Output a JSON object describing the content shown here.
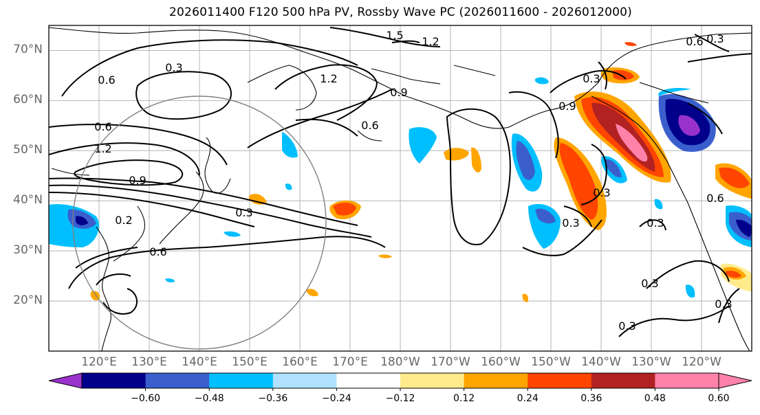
{
  "title": "2026011400 F120 500 hPa PV, Rossby Wave PC (2026011600 - 2026012000)",
  "map": {
    "lat_labels": [
      "70°N",
      "60°N",
      "50°N",
      "40°N",
      "30°N",
      "20°N"
    ],
    "lon_labels": [
      "120°E",
      "130°E",
      "140°E",
      "150°E",
      "160°E",
      "170°E",
      "180°W",
      "170°W",
      "160°W",
      "150°W",
      "140°W",
      "130°W",
      "120°W"
    ],
    "extent": {
      "lon_min": 110,
      "lon_max": 250,
      "lat_min": 10,
      "lat_max": 75
    },
    "contour_labels": [
      "1.5",
      "1.2",
      "0.6",
      "0.3",
      "1.2",
      "0.9",
      "0.6",
      "0.6",
      "1.2",
      "0.9",
      "0.3",
      "0.2",
      "0.6",
      "0.3",
      "0.9",
      "0.3",
      "0.3",
      "0.6",
      "0.3",
      "0.3",
      "0.3",
      "0.3",
      "0.3",
      "0.6"
    ]
  },
  "colorbar": {
    "tick_labels": [
      "−0.60",
      "−0.48",
      "−0.36",
      "−0.24",
      "−0.12",
      "0.12",
      "0.24",
      "0.36",
      "0.48",
      "0.60"
    ],
    "colors": [
      "#9932cc",
      "#00008b",
      "#3a5fcd",
      "#00bfff",
      "#b0e2ff",
      "#ffffff",
      "#ffeb8c",
      "#ffa500",
      "#ff4500",
      "#b22222",
      "#ff82ab",
      "#ff82ab"
    ]
  }
}
